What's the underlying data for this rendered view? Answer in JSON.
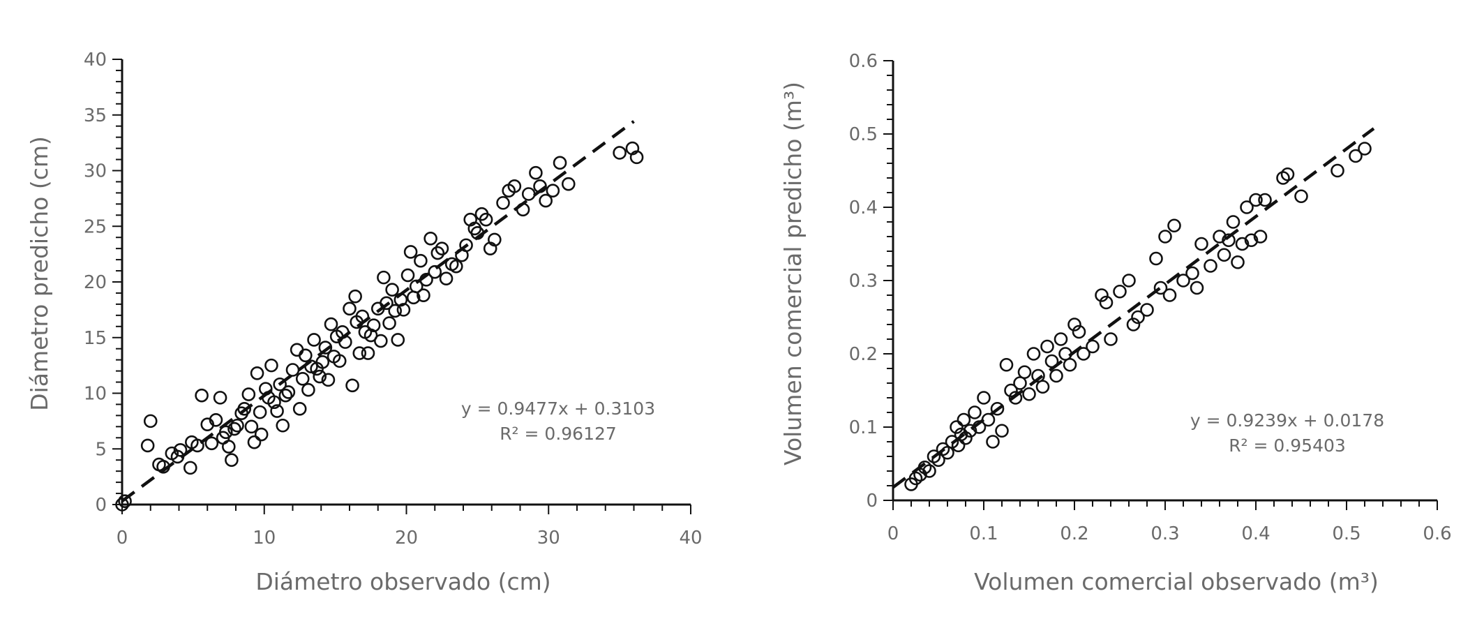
{
  "chart_data": [
    {
      "type": "scatter",
      "xlabel": "Diámetro observado (cm)",
      "ylabel": "Diámetro predicho (cm)",
      "xlim": [
        0,
        40
      ],
      "ylim": [
        0,
        40
      ],
      "x_ticks": [
        0,
        10,
        20,
        30,
        40
      ],
      "y_ticks": [
        0,
        5,
        10,
        15,
        20,
        25,
        30,
        35,
        40
      ],
      "x_tick_labels": [
        "0",
        "10",
        "20",
        "30",
        "40"
      ],
      "y_tick_labels": [
        "0",
        "5",
        "10",
        "15",
        "20",
        "25",
        "30",
        "35",
        "40"
      ],
      "equation": "y = 0.9477x + 0.3103",
      "r2": "R² = 0.96127",
      "trendline": {
        "slope": 0.9477,
        "intercept": 0.3103,
        "x_range": [
          0,
          36
        ]
      },
      "grid": false,
      "points": [
        [
          0,
          0
        ],
        [
          0.2,
          0.3
        ],
        [
          1.8,
          5.3
        ],
        [
          2,
          7.5
        ],
        [
          2.6,
          3.6
        ],
        [
          2.9,
          3.4
        ],
        [
          3.5,
          4.6
        ],
        [
          3.9,
          4.3
        ],
        [
          4.1,
          4.9
        ],
        [
          4.8,
          3.3
        ],
        [
          4.9,
          5.6
        ],
        [
          5.3,
          5.3
        ],
        [
          5.6,
          9.8
        ],
        [
          6,
          7.2
        ],
        [
          6.3,
          5.5
        ],
        [
          6.6,
          7.6
        ],
        [
          6.9,
          9.6
        ],
        [
          7.1,
          6
        ],
        [
          7.3,
          6.5
        ],
        [
          7.5,
          5.2
        ],
        [
          7.7,
          4
        ],
        [
          7.9,
          6.8
        ],
        [
          8.1,
          7.1
        ],
        [
          8.4,
          8.2
        ],
        [
          8.6,
          8.6
        ],
        [
          8.9,
          9.9
        ],
        [
          9.1,
          7
        ],
        [
          9.3,
          5.6
        ],
        [
          9.5,
          11.8
        ],
        [
          9.7,
          8.3
        ],
        [
          9.8,
          6.3
        ],
        [
          10.1,
          10.4
        ],
        [
          10.3,
          9.6
        ],
        [
          10.5,
          12.5
        ],
        [
          10.7,
          9.2
        ],
        [
          10.9,
          8.4
        ],
        [
          11.1,
          10.8
        ],
        [
          11.3,
          7.1
        ],
        [
          11.5,
          9.8
        ],
        [
          11.7,
          10.1
        ],
        [
          12,
          12.1
        ],
        [
          12.3,
          13.9
        ],
        [
          12.5,
          8.6
        ],
        [
          12.7,
          11.3
        ],
        [
          12.9,
          13.4
        ],
        [
          13.1,
          10.3
        ],
        [
          13.3,
          12.4
        ],
        [
          13.5,
          14.8
        ],
        [
          13.7,
          12.2
        ],
        [
          13.9,
          11.5
        ],
        [
          14.1,
          12.8
        ],
        [
          14.3,
          14.1
        ],
        [
          14.5,
          11.2
        ],
        [
          14.7,
          16.2
        ],
        [
          14.9,
          13.3
        ],
        [
          15.1,
          15.1
        ],
        [
          15.3,
          12.9
        ],
        [
          15.5,
          15.5
        ],
        [
          15.7,
          14.6
        ],
        [
          16,
          17.6
        ],
        [
          16.2,
          10.7
        ],
        [
          16.4,
          18.7
        ],
        [
          16.5,
          16.4
        ],
        [
          16.7,
          13.6
        ],
        [
          16.9,
          16.9
        ],
        [
          17.1,
          15.5
        ],
        [
          17.3,
          13.6
        ],
        [
          17.5,
          15.2
        ],
        [
          17.7,
          16.1
        ],
        [
          18,
          17.6
        ],
        [
          18.2,
          14.7
        ],
        [
          18.4,
          20.4
        ],
        [
          18.6,
          18.1
        ],
        [
          18.8,
          16.3
        ],
        [
          19,
          19.3
        ],
        [
          19.2,
          17.4
        ],
        [
          19.4,
          14.8
        ],
        [
          19.6,
          18.4
        ],
        [
          19.8,
          17.5
        ],
        [
          20.1,
          20.6
        ],
        [
          20.3,
          22.7
        ],
        [
          20.5,
          18.6
        ],
        [
          20.7,
          19.6
        ],
        [
          21,
          21.9
        ],
        [
          21.2,
          18.8
        ],
        [
          21.4,
          20.2
        ],
        [
          21.7,
          23.9
        ],
        [
          22,
          20.9
        ],
        [
          22.2,
          22.6
        ],
        [
          22.5,
          23
        ],
        [
          22.8,
          20.3
        ],
        [
          23.2,
          21.6
        ],
        [
          23.5,
          21.4
        ],
        [
          23.9,
          22.4
        ],
        [
          24.2,
          23.3
        ],
        [
          24.5,
          25.6
        ],
        [
          24.8,
          24.8
        ],
        [
          25,
          24.4
        ],
        [
          25.3,
          26.1
        ],
        [
          25.6,
          25.6
        ],
        [
          25.9,
          23
        ],
        [
          26.2,
          23.8
        ],
        [
          26.8,
          27.1
        ],
        [
          27.2,
          28.2
        ],
        [
          27.6,
          28.6
        ],
        [
          28.2,
          26.5
        ],
        [
          28.6,
          27.9
        ],
        [
          29.1,
          29.8
        ],
        [
          29.4,
          28.6
        ],
        [
          29.8,
          27.3
        ],
        [
          30.3,
          28.2
        ],
        [
          30.8,
          30.7
        ],
        [
          31.4,
          28.8
        ],
        [
          35,
          31.6
        ],
        [
          35.9,
          32
        ],
        [
          36.2,
          31.2
        ]
      ]
    },
    {
      "type": "scatter",
      "xlabel": "Volumen comercial observado (m³)",
      "ylabel": "Volumen comercial predicho (m³)",
      "xlim": [
        0,
        0.6
      ],
      "ylim": [
        0,
        0.6
      ],
      "x_ticks": [
        0,
        0.1,
        0.2,
        0.3,
        0.4,
        0.5,
        0.6
      ],
      "y_ticks": [
        0,
        0.1,
        0.2,
        0.3,
        0.4,
        0.5,
        0.6
      ],
      "x_tick_labels": [
        "0",
        "0.1",
        "0.2",
        "0.3",
        "0.4",
        "0.5",
        "0.6"
      ],
      "y_tick_labels": [
        "0",
        "0.1",
        "0.2",
        "0.3",
        "0.4",
        "0.5",
        "0.6"
      ],
      "equation": "y = 0.9239x + 0.0178",
      "r2": "R² = 0.95403",
      "trendline": {
        "slope": 0.9239,
        "intercept": 0.0178,
        "x_range": [
          0,
          0.53
        ]
      },
      "grid": false,
      "points": [
        [
          0.02,
          0.022
        ],
        [
          0.025,
          0.03
        ],
        [
          0.03,
          0.035
        ],
        [
          0.035,
          0.045
        ],
        [
          0.04,
          0.04
        ],
        [
          0.045,
          0.06
        ],
        [
          0.05,
          0.055
        ],
        [
          0.055,
          0.07
        ],
        [
          0.06,
          0.065
        ],
        [
          0.065,
          0.08
        ],
        [
          0.07,
          0.1
        ],
        [
          0.072,
          0.075
        ],
        [
          0.075,
          0.09
        ],
        [
          0.078,
          0.11
        ],
        [
          0.08,
          0.085
        ],
        [
          0.085,
          0.095
        ],
        [
          0.09,
          0.12
        ],
        [
          0.095,
          0.1
        ],
        [
          0.1,
          0.14
        ],
        [
          0.105,
          0.11
        ],
        [
          0.11,
          0.08
        ],
        [
          0.115,
          0.125
        ],
        [
          0.12,
          0.095
        ],
        [
          0.125,
          0.185
        ],
        [
          0.13,
          0.15
        ],
        [
          0.135,
          0.14
        ],
        [
          0.14,
          0.16
        ],
        [
          0.145,
          0.175
        ],
        [
          0.15,
          0.145
        ],
        [
          0.155,
          0.2
        ],
        [
          0.16,
          0.17
        ],
        [
          0.165,
          0.155
        ],
        [
          0.17,
          0.21
        ],
        [
          0.175,
          0.19
        ],
        [
          0.18,
          0.17
        ],
        [
          0.185,
          0.22
        ],
        [
          0.19,
          0.2
        ],
        [
          0.195,
          0.185
        ],
        [
          0.2,
          0.24
        ],
        [
          0.205,
          0.23
        ],
        [
          0.21,
          0.2
        ],
        [
          0.22,
          0.21
        ],
        [
          0.23,
          0.28
        ],
        [
          0.235,
          0.27
        ],
        [
          0.24,
          0.22
        ],
        [
          0.25,
          0.285
        ],
        [
          0.26,
          0.3
        ],
        [
          0.265,
          0.24
        ],
        [
          0.27,
          0.25
        ],
        [
          0.28,
          0.26
        ],
        [
          0.29,
          0.33
        ],
        [
          0.295,
          0.29
        ],
        [
          0.3,
          0.36
        ],
        [
          0.305,
          0.28
        ],
        [
          0.31,
          0.375
        ],
        [
          0.32,
          0.3
        ],
        [
          0.33,
          0.31
        ],
        [
          0.335,
          0.29
        ],
        [
          0.34,
          0.35
        ],
        [
          0.35,
          0.32
        ],
        [
          0.36,
          0.36
        ],
        [
          0.365,
          0.335
        ],
        [
          0.37,
          0.355
        ],
        [
          0.375,
          0.38
        ],
        [
          0.38,
          0.325
        ],
        [
          0.385,
          0.35
        ],
        [
          0.39,
          0.4
        ],
        [
          0.395,
          0.355
        ],
        [
          0.4,
          0.41
        ],
        [
          0.405,
          0.36
        ],
        [
          0.41,
          0.41
        ],
        [
          0.43,
          0.44
        ],
        [
          0.435,
          0.445
        ],
        [
          0.45,
          0.415
        ],
        [
          0.49,
          0.45
        ],
        [
          0.51,
          0.47
        ],
        [
          0.52,
          0.48
        ]
      ]
    }
  ]
}
